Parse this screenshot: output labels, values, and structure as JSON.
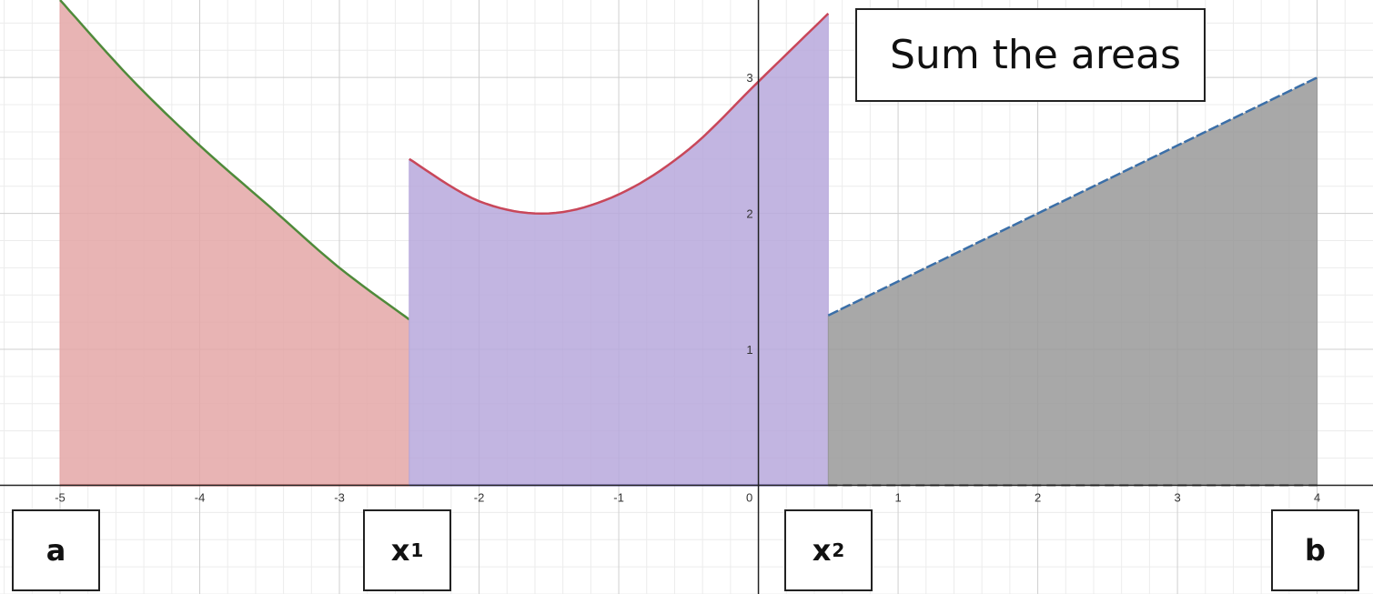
{
  "chart_data": {
    "type": "area",
    "title": "Sum the areas",
    "x_ticks": [
      -5,
      -4,
      -3,
      -2,
      -1,
      0,
      1,
      2,
      3,
      4
    ],
    "x_tick_labels": [
      "-5",
      "-4",
      "-3",
      "-2",
      "-1",
      "0",
      "1",
      "2",
      "3",
      "4"
    ],
    "y_ticks": [
      1,
      2,
      3
    ],
    "y_tick_labels": [
      "1",
      "2",
      "3"
    ],
    "xlim": [
      -5.43,
      4.4
    ],
    "ylim": [
      -0.8,
      3.57
    ],
    "grid": true,
    "regions": [
      {
        "x_from": -5,
        "x_to": -2.5,
        "fill_color": "#e4a7a7",
        "curve_color": "#4f8a3a",
        "baseline_color": "#d9534f",
        "points": [
          [
            -5,
            3.57
          ],
          [
            -4.5,
            3.0
          ],
          [
            -4,
            2.5
          ],
          [
            -3.5,
            2.05
          ],
          [
            -3,
            1.6
          ],
          [
            -2.5,
            1.22
          ]
        ]
      },
      {
        "x_from": -2.5,
        "x_to": 0.5,
        "fill_color": "#b7a8dc",
        "curve_color": "#c8475a",
        "baseline_color": "#6c5fd0",
        "points": [
          [
            -2.5,
            2.4
          ],
          [
            -2,
            2.09
          ],
          [
            -1.5,
            2.0
          ],
          [
            -1,
            2.14
          ],
          [
            -0.5,
            2.47
          ],
          [
            0,
            2.97
          ],
          [
            0.5,
            3.47
          ]
        ]
      },
      {
        "x_from": 0.5,
        "x_to": 4,
        "fill_color": "#999999",
        "curve_color": "#3b6fa8",
        "baseline_color": "#333333",
        "points": [
          [
            0.5,
            1.25
          ],
          [
            4,
            3.0
          ]
        ]
      }
    ]
  },
  "callouts": {
    "title": "Sum the areas",
    "a": "a",
    "x1": "x",
    "x1_sub": "1",
    "x2": "x",
    "x2_sub": "2",
    "b": "b"
  }
}
